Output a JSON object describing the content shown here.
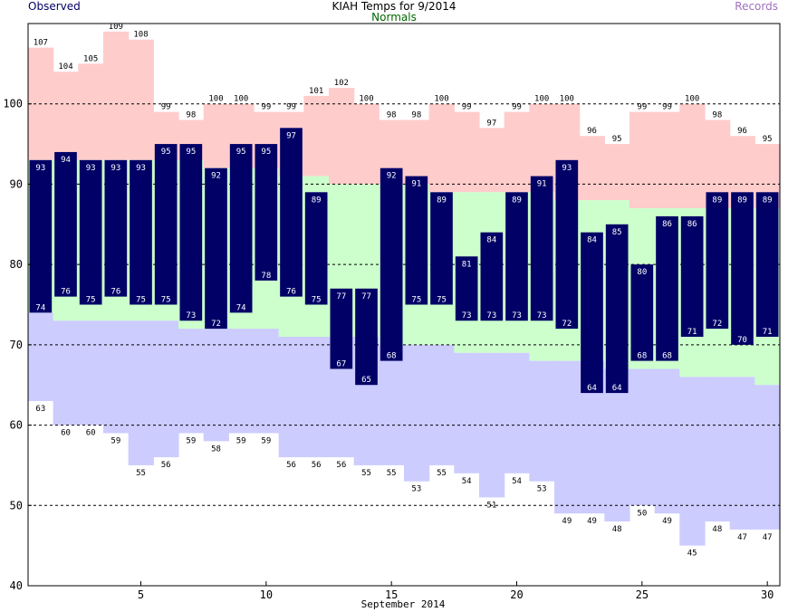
{
  "header": {
    "title": "KIAH Temps for 9/2014",
    "observed_label": "Observed",
    "normals_label": "Normals",
    "records_label": "Records"
  },
  "colors": {
    "record_band": "#ffcccc",
    "normal_band": "#ccffcc",
    "record_low_band": "#ccccff",
    "observed_bar": "#000066",
    "observed_text": "#000066",
    "normals_text": "#006600",
    "records_text": "#a070c0"
  },
  "chart_data": {
    "type": "bar",
    "title": "KIAH Temps for 9/2014",
    "xlabel": "September 2014",
    "ylabel": "",
    "ylim": [
      40,
      110
    ],
    "y_ticks": [
      40,
      50,
      60,
      70,
      80,
      90,
      100
    ],
    "x_ticks": [
      5,
      10,
      15,
      20,
      25,
      30
    ],
    "grid": true,
    "days": [
      1,
      2,
      3,
      4,
      5,
      6,
      7,
      8,
      9,
      10,
      11,
      12,
      13,
      14,
      15,
      16,
      17,
      18,
      19,
      20,
      21,
      22,
      23,
      24,
      25,
      26,
      27,
      28,
      29,
      30
    ],
    "series": [
      {
        "name": "Observed",
        "kind": "high",
        "values": [
          93,
          94,
          93,
          93,
          93,
          95,
          95,
          92,
          95,
          95,
          97,
          89,
          77,
          77,
          92,
          91,
          89,
          81,
          84,
          89,
          91,
          93,
          84,
          85,
          80,
          86,
          86,
          89,
          89,
          89
        ]
      },
      {
        "name": "Observed",
        "kind": "low",
        "values": [
          74,
          76,
          75,
          76,
          75,
          75,
          73,
          72,
          74,
          78,
          76,
          75,
          67,
          65,
          68,
          75,
          75,
          73,
          73,
          73,
          73,
          72,
          64,
          64,
          68,
          68,
          71,
          72,
          70,
          71
        ]
      },
      {
        "name": "Normals",
        "kind": "high",
        "values": [
          93,
          93,
          93,
          93,
          93,
          93,
          93,
          92,
          92,
          92,
          91,
          91,
          90,
          90,
          90,
          90,
          89,
          89,
          89,
          89,
          89,
          88,
          88,
          88,
          87,
          87,
          87,
          87,
          87,
          87
        ]
      },
      {
        "name": "Normals",
        "kind": "low",
        "values": [
          74,
          73,
          73,
          73,
          73,
          73,
          72,
          72,
          72,
          72,
          71,
          71,
          71,
          71,
          70,
          70,
          70,
          69,
          69,
          69,
          68,
          68,
          68,
          67,
          67,
          67,
          66,
          66,
          66,
          65
        ]
      },
      {
        "name": "Records",
        "kind": "high",
        "values": [
          107,
          104,
          105,
          109,
          108,
          99,
          98,
          100,
          100,
          99,
          99,
          101,
          102,
          100,
          98,
          98,
          100,
          99,
          97,
          99,
          100,
          100,
          96,
          95,
          99,
          99,
          100,
          98,
          96,
          95
        ]
      },
      {
        "name": "Records",
        "kind": "low",
        "values": [
          63,
          60,
          60,
          59,
          55,
          56,
          59,
          58,
          59,
          59,
          56,
          56,
          56,
          55,
          55,
          53,
          55,
          54,
          51,
          54,
          53,
          49,
          49,
          48,
          50,
          49,
          45,
          48,
          47,
          47
        ]
      }
    ]
  }
}
